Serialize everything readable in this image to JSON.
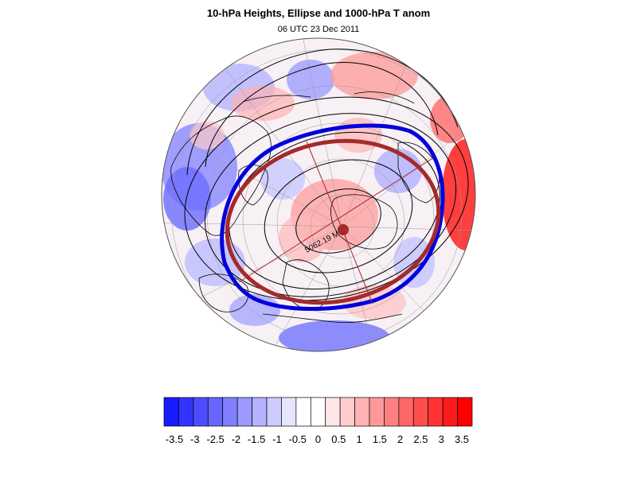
{
  "header": {
    "title": "10-hPa Heights, Ellipse and 1000-hPa T anom",
    "subtitle": "06 UTC 23 Dec 2011"
  },
  "map": {
    "projection": "polar-stereographic-north",
    "contour_label": "5062.19 M",
    "colors": {
      "ellipse_fit": "#a52a2a",
      "observed_contour": "#0000dd",
      "contours": "#000000",
      "coastline": "#000000",
      "centroid_marker": "#a52a2a"
    }
  },
  "colorbar": {
    "colors": [
      "#1a1aff",
      "#3333ff",
      "#4d4dff",
      "#6666ff",
      "#8080ff",
      "#9999ff",
      "#b3b3ff",
      "#ccccff",
      "#e6e6ff",
      "#ffffff",
      "#ffffff",
      "#ffe6e6",
      "#ffcccc",
      "#ffb3b3",
      "#ff9999",
      "#ff8080",
      "#ff6666",
      "#ff4d4d",
      "#ff3333",
      "#ff1a1a",
      "#ff0000"
    ],
    "labels": [
      "-3.5",
      "-3",
      "-2.5",
      "-2",
      "-1.5",
      "-1",
      "-0.5",
      "0",
      "0.5",
      "1",
      "1.5",
      "2",
      "2.5",
      "3",
      "3.5"
    ]
  }
}
